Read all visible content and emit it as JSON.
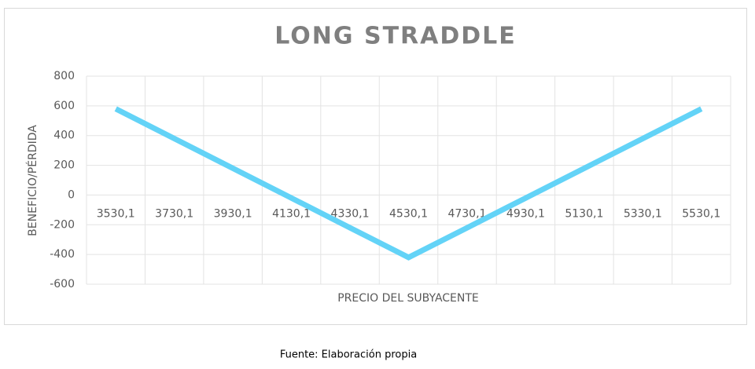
{
  "chart_data": {
    "type": "line",
    "title": "LONG STRADDLE",
    "x_label": "PRECIO DEL SUBYACENTE",
    "y_label": "BENEFICIO/PÉRDIDA",
    "categories": [
      "3530,1",
      "3730,1",
      "3930,1",
      "4130,1",
      "4330,1",
      "4530,1",
      "4730,1",
      "4930,1",
      "5130,1",
      "5330,1",
      "5530,1"
    ],
    "series": [
      {
        "name": "Beneficio/Pérdida",
        "color": "#63d3f7",
        "values": [
          580,
          380,
          180,
          -20,
          -220,
          -420,
          -220,
          -20,
          180,
          380,
          580
        ]
      }
    ],
    "ylim": [
      -600,
      800
    ],
    "yticks": [
      -600,
      -400,
      -200,
      0,
      200,
      400,
      600,
      800
    ],
    "grid": true,
    "source": "Fuente: Elaboración propia"
  }
}
